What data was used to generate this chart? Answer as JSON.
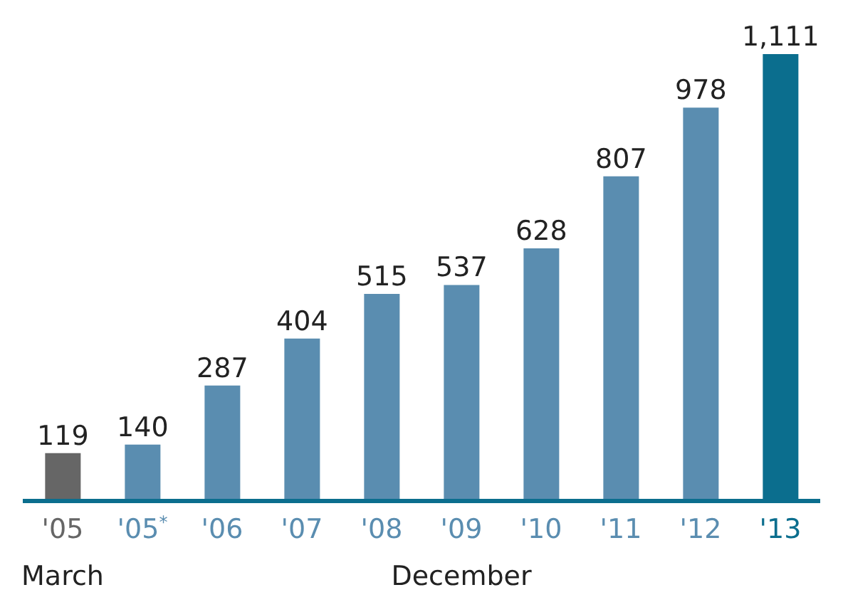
{
  "chart_data": {
    "type": "bar",
    "categories": [
      "'05",
      "'05$^{*}$",
      "'06",
      "'07",
      "'08",
      "'09",
      "'10",
      "'11",
      "'12",
      "'13"
    ],
    "values": [
      119,
      140,
      287,
      404,
      515,
      537,
      628,
      807,
      978,
      1111
    ],
    "colors": [
      "#666666",
      "#5a8db0",
      "#5a8db0",
      "#5a8db0",
      "#5a8db0",
      "#5a8db0",
      "#5a8db0",
      "#5a8db0",
      "#5a8db0",
      "#0b6e8e"
    ],
    "value_labels": [
      "119",
      "140",
      "287",
      "404",
      "515",
      "537",
      "628",
      "807",
      "978",
      "1,111"
    ],
    "annotations": [
      "March",
      "December"
    ]
  }
}
